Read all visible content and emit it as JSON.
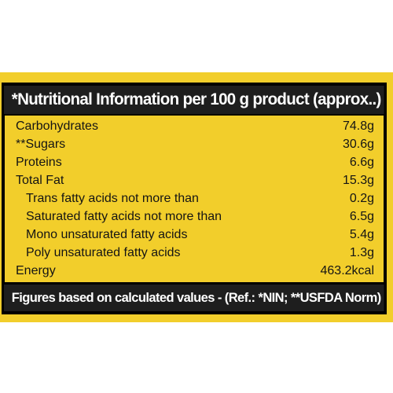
{
  "label": {
    "header_title": "*Nutritional Information per 100 g product (approx..)",
    "rows": [
      {
        "name": "Carbohydrates",
        "value": "74.8g"
      },
      {
        "name": "**Sugars",
        "value": "30.6g"
      },
      {
        "name": "Proteins",
        "value": "6.6g"
      },
      {
        "name": "Total Fat",
        "value": "15.3g"
      },
      {
        "name": "Trans fatty acids not more than",
        "value": "0.2g"
      },
      {
        "name": "Saturated fatty acids not more than",
        "value": "6.5g"
      },
      {
        "name": "Mono unsaturated fatty acids",
        "value": "5.4g"
      },
      {
        "name": "Poly unsaturated fatty acids",
        "value": "1.3g"
      },
      {
        "name": "Energy",
        "value": "463.2kcal"
      }
    ],
    "footer_note": "Figures based on calculated values - (Ref.: *NIN; **USFDA Norm)"
  },
  "colors": {
    "label_background": "#f2ce2b",
    "header_background": "#1e1e1e",
    "text": "#141414",
    "header_text": "#ffffff"
  }
}
